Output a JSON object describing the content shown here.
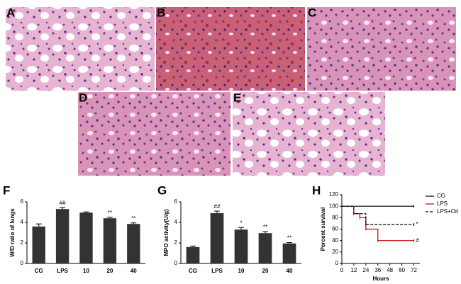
{
  "images": [
    {
      "label": "A"
    },
    {
      "label": "B"
    },
    {
      "label": "C"
    },
    {
      "label": "D"
    },
    {
      "label": "E"
    }
  ],
  "chart_data": [
    {
      "type": "bar",
      "panel": "F",
      "ylabel": "W/D ratio of lungs",
      "categories": [
        "CG",
        "LPS",
        "10",
        "20",
        "40"
      ],
      "values": [
        3.6,
        5.3,
        4.95,
        4.4,
        3.85
      ],
      "errors": [
        0.25,
        0.15,
        0.07,
        0.1,
        0.1
      ],
      "annotations": [
        null,
        "##",
        null,
        "**",
        "**"
      ],
      "color": "#333333",
      "ylim": [
        0,
        6
      ],
      "yticks": [
        0,
        2,
        4,
        6
      ]
    },
    {
      "type": "bar",
      "panel": "G",
      "ylabel": "MPO activity(U/g)",
      "categories": [
        "CG",
        "LPS",
        "10",
        "20",
        "40"
      ],
      "values": [
        1.6,
        4.9,
        3.3,
        2.95,
        1.95
      ],
      "errors": [
        0.1,
        0.2,
        0.2,
        0.15,
        0.08
      ],
      "annotations": [
        null,
        "##",
        "*",
        "**",
        "**"
      ],
      "color": "#333333",
      "ylim": [
        0,
        6
      ],
      "yticks": [
        0,
        2,
        4,
        6
      ]
    },
    {
      "type": "step",
      "panel": "H",
      "xlabel": "Hours",
      "ylabel": "Percent survival",
      "xlim": [
        0,
        78
      ],
      "xticks": [
        0,
        12,
        24,
        36,
        48,
        60,
        72
      ],
      "ylim": [
        0,
        120
      ],
      "yticks": [
        0,
        20,
        40,
        60,
        80,
        100,
        120
      ],
      "legend": "upper right",
      "series": [
        {
          "name": "CG",
          "color": "#000000",
          "dashed": false,
          "x": [
            0,
            72
          ],
          "values": [
            100,
            100
          ],
          "annotation": null
        },
        {
          "name": "LPS",
          "color": "#cc0000",
          "dashed": false,
          "x": [
            0,
            12,
            18,
            24,
            36,
            72
          ],
          "values": [
            100,
            87,
            80,
            60,
            40,
            40
          ],
          "annotation": "#"
        },
        {
          "name": "LPS+Ori",
          "color": "#000000",
          "dashed": true,
          "x": [
            0,
            12,
            24,
            72
          ],
          "values": [
            100,
            87,
            68,
            68
          ],
          "annotation": "*"
        }
      ]
    }
  ]
}
